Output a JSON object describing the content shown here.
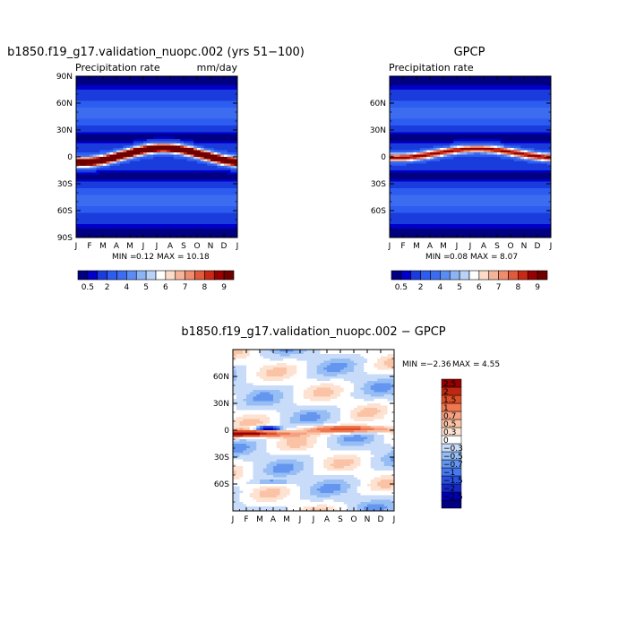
{
  "chart_data": [
    {
      "type": "heatmap",
      "title": "b1850.f19_g17.validation_nuopc.002 (yrs 51−100)",
      "subtitle_left": "Precipitation rate",
      "units": "mm/day",
      "x_ticks": [
        "J",
        "F",
        "M",
        "A",
        "M",
        "J",
        "J",
        "A",
        "S",
        "O",
        "N",
        "D",
        "J"
      ],
      "y_ticks": [
        "90N",
        "60N",
        "30N",
        "0",
        "30S",
        "60S",
        "90S"
      ],
      "ylim": [
        -90,
        90
      ],
      "min_label": "MIN =",
      "min_value": "0.12",
      "max_label": "MAX =",
      "max_value": "10.18",
      "stats": {
        "min": 0.12,
        "max": 10.18
      },
      "field": {
        "itcz_amplitude": 9.5,
        "itcz_center_mean": 2,
        "itcz_center_seasonal": 8,
        "itcz_width": 6
      },
      "colorbar": {
        "levels": [
          0.5,
          1,
          2,
          3,
          4,
          4.5,
          5,
          5.5,
          6,
          6.5,
          7,
          7.5,
          8,
          8.5,
          9
        ],
        "tick_labels": [
          "0.5",
          "2",
          "4",
          "5",
          "6",
          "7",
          "8",
          "9"
        ],
        "colors": [
          "#000080",
          "#0000c8",
          "#1a3cdc",
          "#2d5cf0",
          "#3c6cf0",
          "#5a8cf5",
          "#8cb4f5",
          "#b9d3f8",
          "#ffffff",
          "#fcdcc8",
          "#f5b49a",
          "#f08c6e",
          "#e05a3c",
          "#c82814",
          "#960000",
          "#6e0000"
        ]
      }
    },
    {
      "type": "heatmap",
      "title": "GPCP",
      "subtitle_left": "Precipitation rate",
      "x_ticks": [
        "J",
        "F",
        "M",
        "A",
        "M",
        "J",
        "J",
        "A",
        "S",
        "O",
        "N",
        "D",
        "J"
      ],
      "y_ticks": [
        "60N",
        "30N",
        "0",
        "30S",
        "60S"
      ],
      "ylim": [
        -90,
        90
      ],
      "min_label": "MIN =",
      "min_value": "0.08",
      "max_label": "MAX =",
      "max_value": "8.07",
      "stats": {
        "min": 0.08,
        "max": 8.07
      },
      "field": {
        "itcz_amplitude": 7.2,
        "itcz_center_mean": 4,
        "itcz_center_seasonal": 5,
        "itcz_width": 5
      },
      "colorbar": {
        "levels": [
          0.5,
          1,
          2,
          3,
          4,
          4.5,
          5,
          5.5,
          6,
          6.5,
          7,
          7.5,
          8,
          8.5,
          9
        ],
        "tick_labels": [
          "0.5",
          "2",
          "4",
          "5",
          "6",
          "7",
          "8",
          "9"
        ],
        "colors": [
          "#000080",
          "#0000c8",
          "#1a3cdc",
          "#2d5cf0",
          "#3c6cf0",
          "#5a8cf5",
          "#8cb4f5",
          "#b9d3f8",
          "#ffffff",
          "#fcdcc8",
          "#f5b49a",
          "#f08c6e",
          "#e05a3c",
          "#c82814",
          "#960000",
          "#6e0000"
        ]
      }
    },
    {
      "type": "heatmap",
      "title": "b1850.f19_g17.validation_nuopc.002 − GPCP",
      "x_ticks": [
        "J",
        "F",
        "M",
        "A",
        "M",
        "J",
        "J",
        "A",
        "S",
        "O",
        "N",
        "D",
        "J"
      ],
      "y_ticks": [
        "60N",
        "30N",
        "0",
        "30S",
        "60S"
      ],
      "ylim": [
        -90,
        90
      ],
      "min_label": "MIN =",
      "min_value": "−2.36",
      "max_label": "MAX =",
      "max_value": "4.55",
      "stats": {
        "min": -2.36,
        "max": 4.55
      },
      "colorbar": {
        "levels": [
          -2.5,
          -2,
          -1.5,
          -1,
          -0.7,
          -0.5,
          -0.3,
          0,
          0.3,
          0.5,
          0.7,
          1,
          1.5,
          2,
          2.5
        ],
        "tick_labels": [
          "2.5",
          "2",
          "1.5",
          "1",
          "0.7",
          "0.5",
          "0.3",
          "0",
          "−0.3",
          "−0.5",
          "−0.7",
          "−1",
          "−1.5",
          "−2",
          "−2.5"
        ],
        "colors": [
          "#000080",
          "#0000b4",
          "#1428c8",
          "#2850e1",
          "#4678f0",
          "#6496f0",
          "#96bef5",
          "#c8dcfa",
          "#ffffff",
          "#fde2d2",
          "#fac3a5",
          "#f5a082",
          "#f07850",
          "#dc5028",
          "#be2812",
          "#960000"
        ]
      }
    }
  ]
}
